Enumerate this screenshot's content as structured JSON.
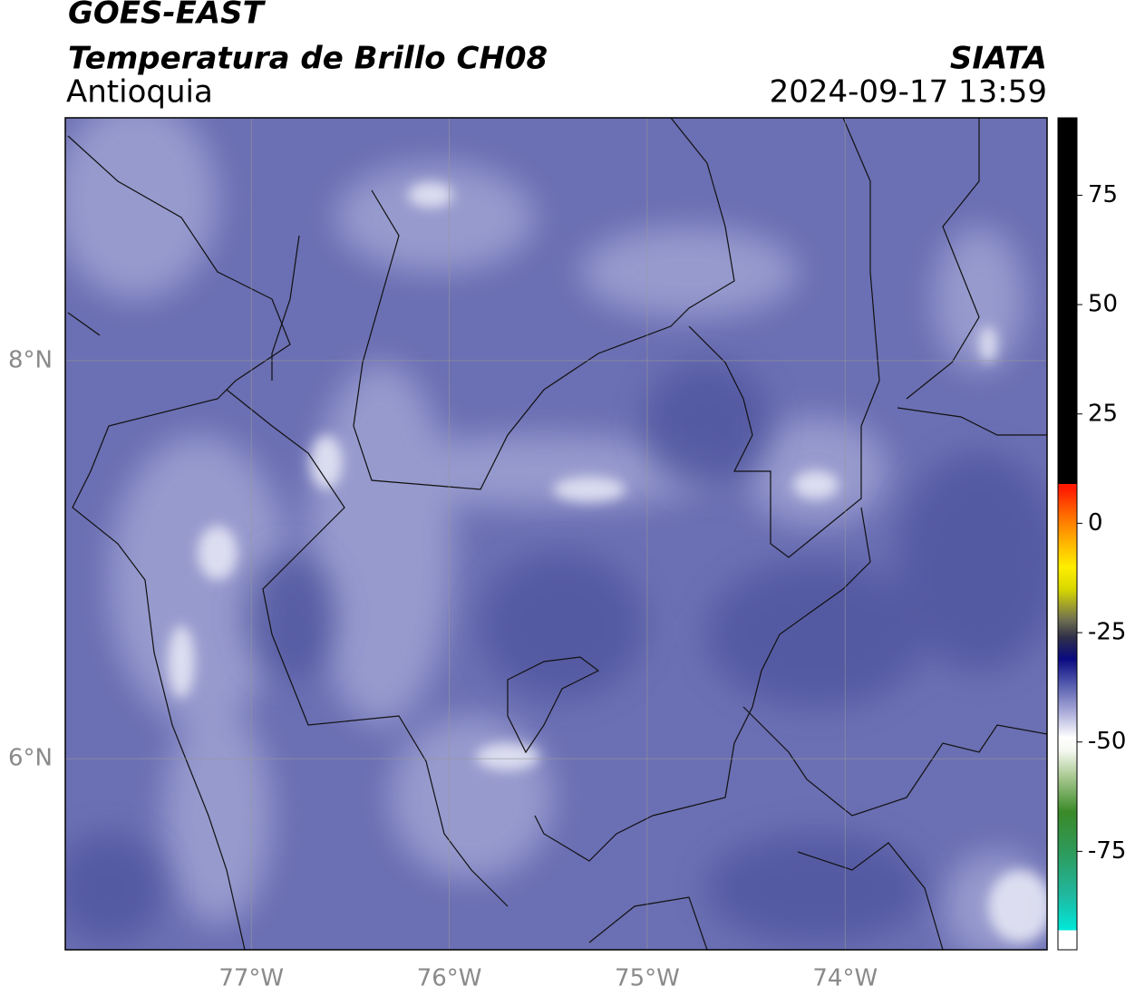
{
  "header": {
    "satellite": "GOES-EAST",
    "product": "Temperatura de Brillo CH08",
    "region": "Antioquia",
    "source": "SIATA",
    "timestamp": "2024-09-17 13:59"
  },
  "map": {
    "xlim": [
      -77.94,
      -72.98
    ],
    "ylim": [
      5.04,
      9.22
    ],
    "xticks": [
      {
        "value": -77,
        "label": "77°W"
      },
      {
        "value": -76,
        "label": "76°W"
      },
      {
        "value": -75,
        "label": "75°W"
      },
      {
        "value": -74,
        "label": "74°W"
      }
    ],
    "yticks": [
      {
        "value": 8,
        "label": "8°N"
      },
      {
        "value": 6,
        "label": "6°N"
      }
    ],
    "grid": true
  },
  "colorbar": {
    "lim": [
      -97.5,
      92.7
    ],
    "ticks": [
      75,
      50,
      25,
      0,
      -25,
      -50,
      -75
    ],
    "stops": [
      {
        "value": -97.5,
        "color": "#ffffff"
      },
      {
        "value": -93,
        "color": "#ffffff"
      },
      {
        "value": -93,
        "color": "#00e8d8"
      },
      {
        "value": -85,
        "color": "#20b8a0"
      },
      {
        "value": -75,
        "color": "#2e9a5a"
      },
      {
        "value": -66,
        "color": "#3a8a28"
      },
      {
        "value": -58,
        "color": "#a8c890"
      },
      {
        "value": -52,
        "color": "#f4f8f0"
      },
      {
        "value": -49,
        "color": "#ffffff"
      },
      {
        "value": -43,
        "color": "#a8aad8"
      },
      {
        "value": -36,
        "color": "#4a50a8"
      },
      {
        "value": -31,
        "color": "#0a0a80"
      },
      {
        "value": -26,
        "color": "#303048"
      },
      {
        "value": -22,
        "color": "#707050"
      },
      {
        "value": -15,
        "color": "#d8d800"
      },
      {
        "value": -10,
        "color": "#ffee00"
      },
      {
        "value": -4,
        "color": "#ffb000"
      },
      {
        "value": 2,
        "color": "#ff6a00"
      },
      {
        "value": 8,
        "color": "#ff1a00"
      },
      {
        "value": 9,
        "color": "#ff1a00"
      },
      {
        "value": 9,
        "color": "#000000"
      },
      {
        "value": 92.7,
        "color": "#000000"
      }
    ]
  }
}
